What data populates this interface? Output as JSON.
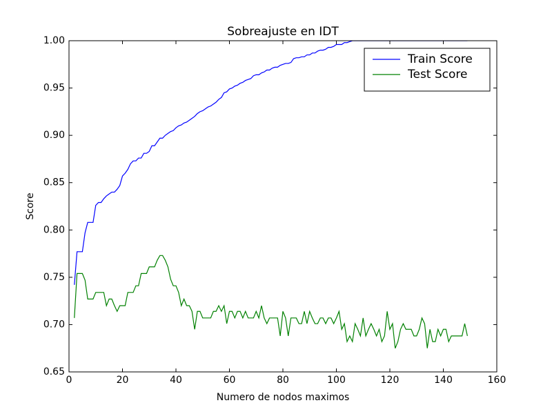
{
  "chart_data": {
    "type": "line",
    "title": "Sobreajuste en IDT",
    "x_label": "Numero de nodos maximos",
    "y_label": "Score",
    "xlim": [
      0,
      160
    ],
    "xticks": [
      0,
      20,
      40,
      60,
      80,
      100,
      120,
      140,
      160
    ],
    "ylim": [
      0.65,
      1.0
    ],
    "yticks": [
      0.65,
      {
        "value": 0.7,
        "label": "0.70"
      },
      0.75,
      {
        "value": 0.8,
        "label": "0.80"
      },
      0.85,
      {
        "value": 0.9,
        "label": "0.90"
      },
      0.95,
      {
        "value": 1.0,
        "label": "1.00"
      }
    ],
    "legend": "upper right",
    "grid": false,
    "x": [
      2,
      3,
      4,
      5,
      6,
      7,
      8,
      9,
      10,
      11,
      12,
      13,
      14,
      15,
      16,
      17,
      18,
      19,
      20,
      21,
      22,
      23,
      24,
      25,
      26,
      27,
      28,
      29,
      30,
      31,
      32,
      33,
      34,
      35,
      36,
      37,
      38,
      39,
      40,
      41,
      42,
      43,
      44,
      45,
      46,
      47,
      48,
      49,
      50,
      51,
      52,
      53,
      54,
      55,
      56,
      57,
      58,
      59,
      60,
      61,
      62,
      63,
      64,
      65,
      66,
      67,
      68,
      69,
      70,
      71,
      72,
      73,
      74,
      75,
      76,
      77,
      78,
      79,
      80,
      81,
      82,
      83,
      84,
      85,
      86,
      87,
      88,
      89,
      90,
      91,
      92,
      93,
      94,
      95,
      96,
      97,
      98,
      99,
      100,
      101,
      102,
      103,
      104,
      105,
      106,
      107,
      108,
      109,
      110,
      111,
      112,
      113,
      114,
      115,
      116,
      117,
      118,
      119,
      120,
      121,
      122,
      123,
      124,
      125,
      126,
      127,
      128,
      129,
      130,
      131,
      132,
      133,
      134,
      135,
      136,
      137,
      138,
      139,
      140,
      141,
      142,
      143,
      144,
      145,
      146,
      147,
      148,
      149
    ],
    "series": [
      {
        "name": "Train Score",
        "color": "#0000ff",
        "values": [
          0.742,
          0.777,
          0.777,
          0.777,
          0.797,
          0.808,
          0.808,
          0.808,
          0.826,
          0.829,
          0.829,
          0.833,
          0.836,
          0.838,
          0.84,
          0.84,
          0.843,
          0.847,
          0.857,
          0.86,
          0.864,
          0.87,
          0.873,
          0.873,
          0.876,
          0.876,
          0.881,
          0.881,
          0.883,
          0.889,
          0.889,
          0.893,
          0.897,
          0.897,
          0.9,
          0.902,
          0.904,
          0.905,
          0.908,
          0.91,
          0.911,
          0.913,
          0.914,
          0.916,
          0.918,
          0.92,
          0.923,
          0.925,
          0.926,
          0.928,
          0.93,
          0.931,
          0.933,
          0.935,
          0.938,
          0.94,
          0.945,
          0.946,
          0.949,
          0.95,
          0.952,
          0.953,
          0.955,
          0.956,
          0.958,
          0.959,
          0.96,
          0.963,
          0.964,
          0.964,
          0.966,
          0.967,
          0.969,
          0.969,
          0.971,
          0.972,
          0.972,
          0.974,
          0.975,
          0.976,
          0.976,
          0.977,
          0.981,
          0.982,
          0.982,
          0.983,
          0.983,
          0.985,
          0.985,
          0.987,
          0.987,
          0.989,
          0.99,
          0.99,
          0.991,
          0.993,
          0.993,
          0.994,
          0.996,
          0.996,
          0.996,
          0.998,
          0.998,
          0.999,
          1.0,
          1.0,
          1.0,
          1.0,
          1.0,
          1.0,
          1.0,
          1.0,
          1.0,
          1.0,
          1.0,
          1.0,
          1.0,
          1.0,
          1.0,
          1.0,
          1.0,
          1.0,
          1.0,
          1.0,
          1.0,
          1.0,
          1.0,
          1.0,
          1.0,
          1.0,
          1.0,
          1.0,
          1.0,
          1.0,
          1.0,
          1.0,
          1.0,
          1.0,
          1.0,
          1.0,
          1.0,
          1.0,
          1.0,
          1.0,
          1.0,
          1.0,
          1.0,
          1.0
        ]
      },
      {
        "name": "Test Score",
        "color": "#008000",
        "values": [
          0.707,
          0.754,
          0.754,
          0.754,
          0.747,
          0.727,
          0.727,
          0.727,
          0.734,
          0.734,
          0.734,
          0.734,
          0.72,
          0.727,
          0.727,
          0.72,
          0.714,
          0.72,
          0.72,
          0.72,
          0.734,
          0.734,
          0.734,
          0.741,
          0.741,
          0.754,
          0.754,
          0.754,
          0.761,
          0.761,
          0.761,
          0.768,
          0.773,
          0.773,
          0.768,
          0.761,
          0.748,
          0.741,
          0.741,
          0.734,
          0.72,
          0.727,
          0.72,
          0.72,
          0.714,
          0.695,
          0.714,
          0.714,
          0.707,
          0.707,
          0.707,
          0.707,
          0.714,
          0.714,
          0.72,
          0.714,
          0.72,
          0.701,
          0.714,
          0.714,
          0.707,
          0.714,
          0.714,
          0.707,
          0.714,
          0.707,
          0.707,
          0.707,
          0.714,
          0.707,
          0.72,
          0.707,
          0.701,
          0.707,
          0.707,
          0.707,
          0.707,
          0.688,
          0.714,
          0.707,
          0.688,
          0.707,
          0.707,
          0.707,
          0.701,
          0.701,
          0.714,
          0.701,
          0.714,
          0.707,
          0.701,
          0.701,
          0.707,
          0.707,
          0.701,
          0.707,
          0.707,
          0.701,
          0.707,
          0.714,
          0.695,
          0.701,
          0.682,
          0.688,
          0.682,
          0.701,
          0.695,
          0.688,
          0.707,
          0.688,
          0.695,
          0.701,
          0.695,
          0.688,
          0.695,
          0.682,
          0.688,
          0.714,
          0.695,
          0.701,
          0.675,
          0.682,
          0.695,
          0.701,
          0.695,
          0.695,
          0.695,
          0.688,
          0.688,
          0.695,
          0.707,
          0.701,
          0.675,
          0.695,
          0.682,
          0.682,
          0.695,
          0.688,
          0.695,
          0.695,
          0.682,
          0.688,
          0.688,
          0.688,
          0.688,
          0.688,
          0.701,
          0.688
        ]
      }
    ]
  }
}
